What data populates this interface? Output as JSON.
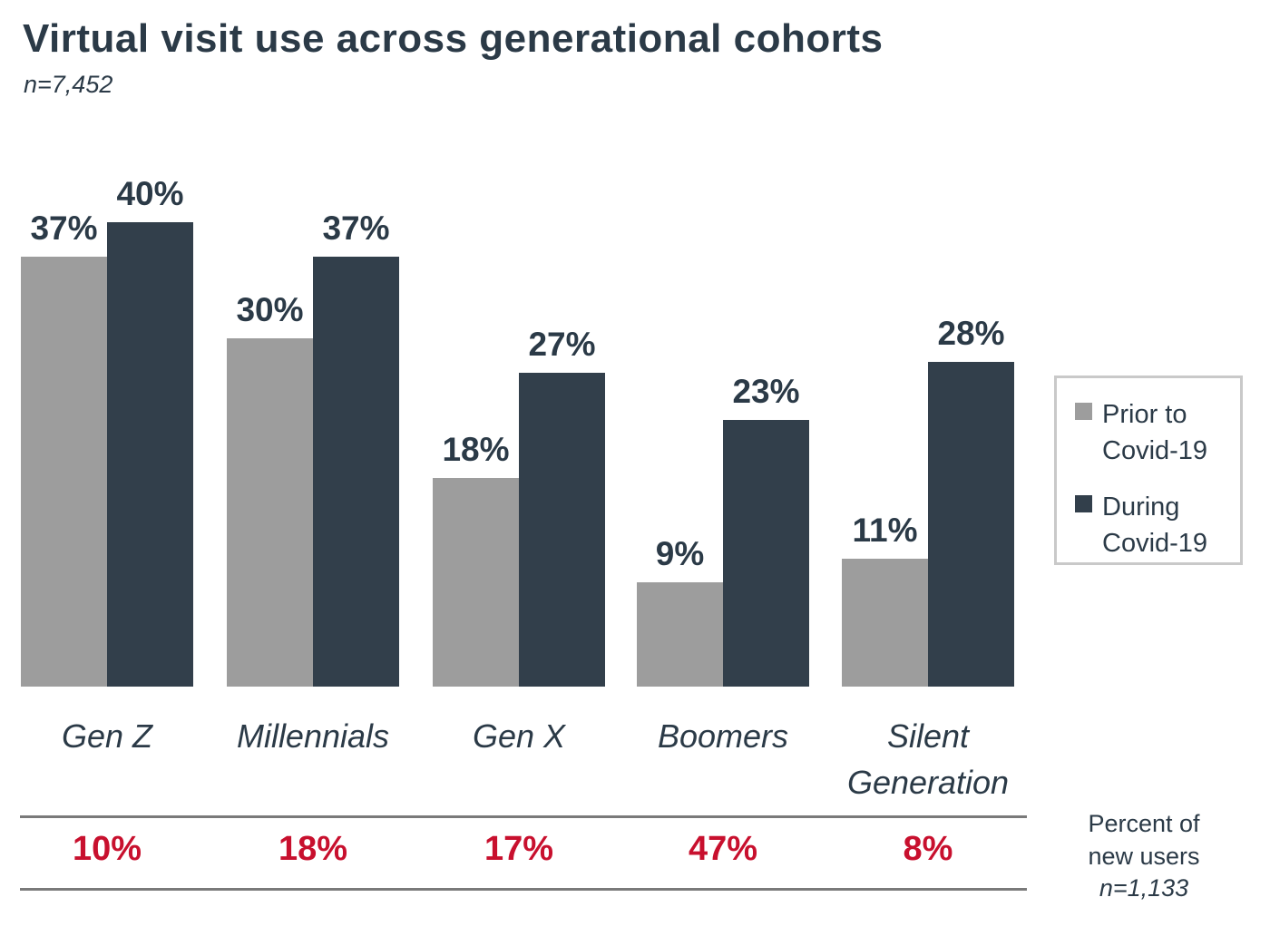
{
  "header": {
    "title": "Virtual visit use across generational cohorts",
    "subtitle": "n=7,452"
  },
  "colors": {
    "navy": "#2B3A47",
    "bar_prior": "#9D9D9D",
    "bar_during": "#323F4B",
    "red": "#C8102E",
    "line_gray": "#7A7A7A",
    "legend_border": "#C9C9C9"
  },
  "legend": {
    "items": [
      {
        "label": "Prior to Covid-19",
        "color": "#9D9D9D"
      },
      {
        "label": "During Covid-19",
        "color": "#323F4B"
      }
    ]
  },
  "chart_data": {
    "type": "bar",
    "title": "Virtual visit use across generational cohorts",
    "subtitle": "n=7,452",
    "categories": [
      "Gen Z",
      "Millennials",
      "Gen X",
      "Boomers",
      "Silent Generation"
    ],
    "series": [
      {
        "name": "Prior to Covid-19",
        "values": [
          37,
          30,
          18,
          9,
          11
        ]
      },
      {
        "name": "During Covid-19",
        "values": [
          40,
          37,
          27,
          23,
          28
        ]
      }
    ],
    "value_suffix": "%",
    "ylim": [
      0,
      47
    ],
    "grid": false,
    "legend_position": "right",
    "data_labels": true,
    "new_users_row": {
      "values": [
        10,
        18,
        17,
        47,
        8
      ],
      "suffix": "%",
      "caption_line1": "Percent of",
      "caption_line2": "new users",
      "caption_line3": "n=1,133"
    }
  },
  "footnote": {
    "line1": "Percent of",
    "line2": "new users",
    "line3": "n=1,133"
  }
}
